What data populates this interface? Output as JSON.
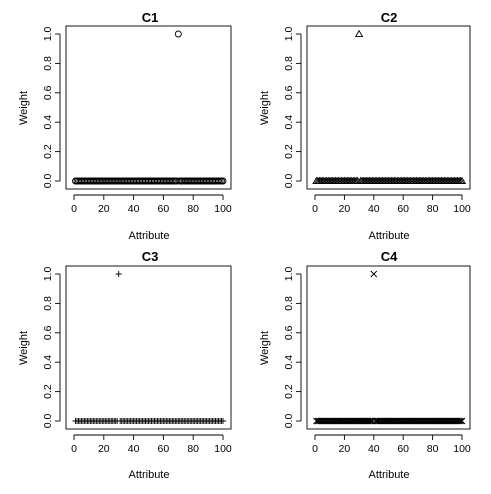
{
  "colors": {
    "background": "#ffffff",
    "ink": "#000000"
  },
  "chart_data": [
    {
      "type": "scatter",
      "title": "C1",
      "xlabel": "Attribute",
      "ylabel": "Weight",
      "marker": "circle",
      "n_points": 100,
      "x_range": [
        1,
        100
      ],
      "highlight": {
        "x": 70,
        "y": 1.0
      },
      "baseline_value": 0.0,
      "xlim": [
        0,
        100
      ],
      "ylim": [
        0,
        1
      ],
      "xticks": [
        "0",
        "20",
        "40",
        "60",
        "80",
        "100"
      ],
      "yticks": [
        "0.0",
        "0.2",
        "0.4",
        "0.6",
        "0.8",
        "1.0"
      ],
      "grid": false
    },
    {
      "type": "scatter",
      "title": "C2",
      "xlabel": "Attribute",
      "ylabel": "Weight",
      "marker": "triangle",
      "n_points": 100,
      "x_range": [
        1,
        100
      ],
      "highlight": {
        "x": 30,
        "y": 1.0
      },
      "baseline_value": 0.0,
      "xlim": [
        0,
        100
      ],
      "ylim": [
        0,
        1
      ],
      "xticks": [
        "0",
        "20",
        "40",
        "60",
        "80",
        "100"
      ],
      "yticks": [
        "0.0",
        "0.2",
        "0.4",
        "0.6",
        "0.8",
        "1.0"
      ],
      "grid": false
    },
    {
      "type": "scatter",
      "title": "C3",
      "xlabel": "Attribute",
      "ylabel": "Weight",
      "marker": "plus",
      "n_points": 100,
      "x_range": [
        1,
        100
      ],
      "highlight": {
        "x": 30,
        "y": 1.0
      },
      "baseline_value": 0.0,
      "xlim": [
        0,
        100
      ],
      "ylim": [
        0,
        1
      ],
      "xticks": [
        "0",
        "20",
        "40",
        "60",
        "80",
        "100"
      ],
      "yticks": [
        "0.0",
        "0.2",
        "0.4",
        "0.6",
        "0.8",
        "1.0"
      ],
      "grid": false
    },
    {
      "type": "scatter",
      "title": "C4",
      "xlabel": "Attribute",
      "ylabel": "Weight",
      "marker": "cross",
      "n_points": 100,
      "x_range": [
        1,
        100
      ],
      "highlight": {
        "x": 40,
        "y": 1.0
      },
      "baseline_value": 0.0,
      "xlim": [
        0,
        100
      ],
      "ylim": [
        0,
        1
      ],
      "xticks": [
        "0",
        "20",
        "40",
        "60",
        "80",
        "100"
      ],
      "yticks": [
        "0.0",
        "0.2",
        "0.4",
        "0.6",
        "0.8",
        "1.0"
      ],
      "grid": false
    }
  ]
}
